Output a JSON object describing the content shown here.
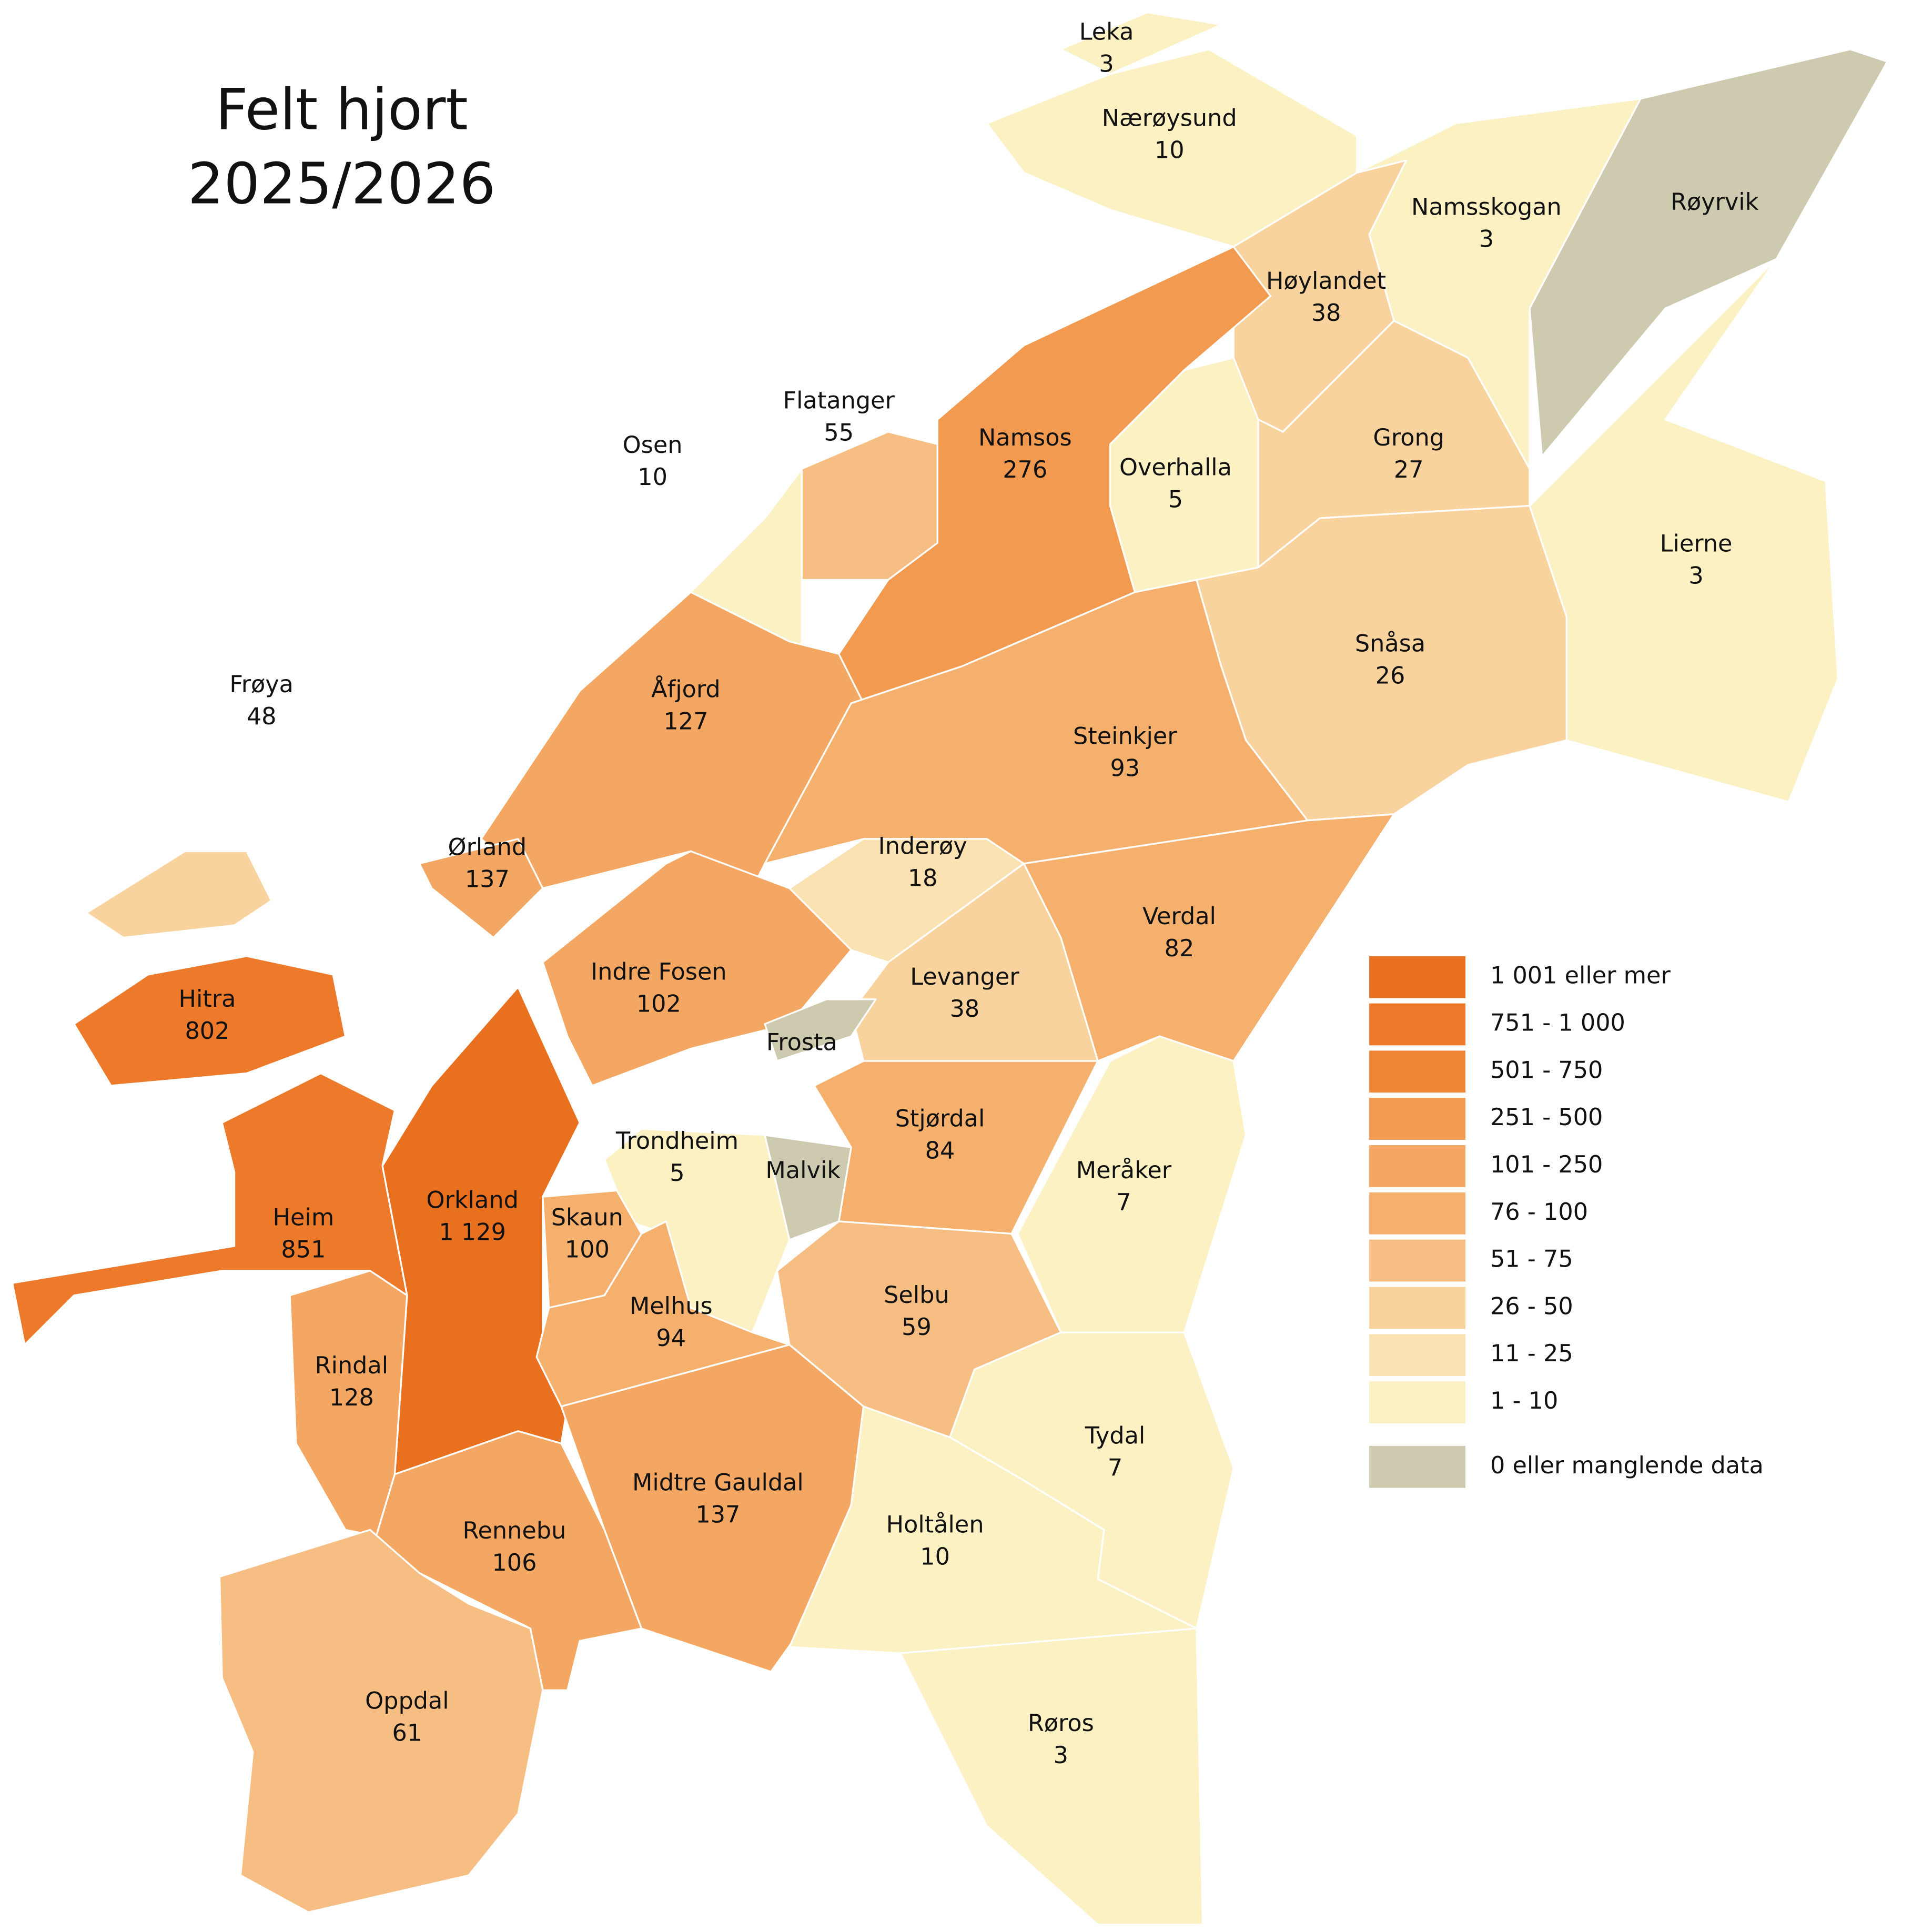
{
  "title_lines": [
    "Felt hjort",
    "2025/2026"
  ],
  "municipalities": [
    {
      "name": "Leka",
      "value": 3,
      "color": "#fbf1c3"
    },
    {
      "name": "Nærøysund",
      "value": 10,
      "color": "#fbf1c3"
    },
    {
      "name": "Namsskogan",
      "value": 3,
      "color": "#fbf1c3"
    },
    {
      "name": "Røyrvik",
      "value": null,
      "color": "#cdcab0"
    },
    {
      "name": "Høylandet",
      "value": 38,
      "color": "#f9d39d"
    },
    {
      "name": "Grong",
      "value": 27,
      "color": "#f9d39d"
    },
    {
      "name": "Lierne",
      "value": 3,
      "color": "#fbf1c3"
    },
    {
      "name": "Namsos",
      "value": 276,
      "color": "#f29a50"
    },
    {
      "name": "Flatanger",
      "value": 55,
      "color": "#f7be84"
    },
    {
      "name": "Osen",
      "value": 10,
      "color": "#fbf1c3"
    },
    {
      "name": "Overhalla",
      "value": 5,
      "color": "#fbf1c3"
    },
    {
      "name": "Snåsa",
      "value": 26,
      "color": "#f9d39d"
    },
    {
      "name": "Åfjord",
      "value": 127,
      "color": "#f4a762"
    },
    {
      "name": "Frøya",
      "value": 48,
      "color": "#f9d39d"
    },
    {
      "name": "Steinkjer",
      "value": 93,
      "color": "#f6b06e"
    },
    {
      "name": "Inderøy",
      "value": 18,
      "color": "#fae2b3"
    },
    {
      "name": "Ørland",
      "value": 137,
      "color": "#f4a762"
    },
    {
      "name": "Verdal",
      "value": 82,
      "color": "#f6b06e"
    },
    {
      "name": "Indre Fosen",
      "value": 102,
      "color": "#f4a762"
    },
    {
      "name": "Levanger",
      "value": 38,
      "color": "#f9d39d"
    },
    {
      "name": "Hitra",
      "value": 802,
      "color": "#ec7a2a"
    },
    {
      "name": "Frosta",
      "value": null,
      "color": "#cdcab0"
    },
    {
      "name": "Stjørdal",
      "value": 84,
      "color": "#f6b06e"
    },
    {
      "name": "Trondheim",
      "value": 5,
      "color": "#fbf1c3"
    },
    {
      "name": "Malvik",
      "value": null,
      "color": "#cdcab0"
    },
    {
      "name": "Meråker",
      "value": 7,
      "color": "#fbf1c3"
    },
    {
      "name": "Orkland",
      "value": {
        "value": 1129,
        "label": "1 129"
      },
      "color": "#e8701f"
    },
    {
      "name": "Heim",
      "value": 851,
      "color": "#ec7a2a"
    },
    {
      "name": "Skaun",
      "value": 100,
      "color": "#f6b06e"
    },
    {
      "name": "Melhus",
      "value": 94,
      "color": "#f6b06e"
    },
    {
      "name": "Selbu",
      "value": 59,
      "color": "#f7be84"
    },
    {
      "name": "Rindal",
      "value": 128,
      "color": "#f4a762"
    },
    {
      "name": "Tydal",
      "value": 7,
      "color": "#fbf1c3"
    },
    {
      "name": "Midtre Gauldal",
      "value": 137,
      "color": "#f4a762"
    },
    {
      "name": "Holtålen",
      "value": 10,
      "color": "#fbf1c3"
    },
    {
      "name": "Rennebu",
      "value": 106,
      "color": "#f4a762"
    },
    {
      "name": "Oppdal",
      "value": 61,
      "color": "#f7be84"
    },
    {
      "name": "Røros",
      "value": 3,
      "color": "#fbf1c3"
    }
  ],
  "legend": [
    {
      "label": "1 001 eller mer",
      "color": "#e8701f"
    },
    {
      "label": "751 - 1 000",
      "color": "#ec7a2a"
    },
    {
      "label": "501 - 750",
      "color": "#ef8636"
    },
    {
      "label": "251 - 500",
      "color": "#f29a50"
    },
    {
      "label": "101 - 250",
      "color": "#f4a762"
    },
    {
      "label": "76 - 100",
      "color": "#f6b06e"
    },
    {
      "label": "51 - 75",
      "color": "#f7be84"
    },
    {
      "label": "26 - 50",
      "color": "#f9d39d"
    },
    {
      "label": "11 - 25",
      "color": "#fae2b3"
    },
    {
      "label": "1 - 10",
      "color": "#fbf1c3"
    },
    {
      "label": "0 eller manglende data",
      "color": "#cdcab0"
    }
  ]
}
